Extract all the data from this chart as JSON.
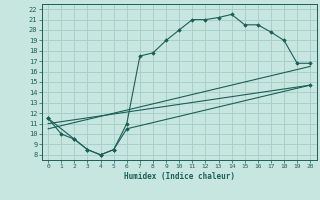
{
  "title": "",
  "xlabel": "Humidex (Indice chaleur)",
  "background_color": "#c8e6e0",
  "grid_color": "#a8cfc8",
  "line_color": "#1a6058",
  "xlim": [
    -0.5,
    20.5
  ],
  "ylim": [
    7.5,
    22.5
  ],
  "xticks": [
    0,
    1,
    2,
    3,
    4,
    5,
    6,
    7,
    8,
    9,
    10,
    11,
    12,
    13,
    14,
    15,
    16,
    17,
    18,
    19,
    20
  ],
  "yticks": [
    8,
    9,
    10,
    11,
    12,
    13,
    14,
    15,
    16,
    17,
    18,
    19,
    20,
    21,
    22
  ],
  "series": [
    {
      "x": [
        0,
        1,
        2,
        3,
        4,
        5,
        6,
        7,
        8,
        9,
        10,
        11,
        12,
        13,
        14,
        15,
        16,
        17,
        18,
        19,
        20
      ],
      "y": [
        11.5,
        10.0,
        9.5,
        8.5,
        8.0,
        8.5,
        11.0,
        17.5,
        17.8,
        19.0,
        20.0,
        21.0,
        21.0,
        21.2,
        21.5,
        20.5,
        20.5,
        19.8,
        19.0,
        16.8,
        16.8
      ],
      "marker": true
    },
    {
      "x": [
        0,
        2,
        3,
        4,
        5,
        6,
        20
      ],
      "y": [
        11.5,
        9.5,
        8.5,
        8.0,
        8.5,
        10.5,
        14.7
      ],
      "marker": true
    },
    {
      "x": [
        0,
        20
      ],
      "y": [
        11.0,
        14.7
      ],
      "marker": false
    },
    {
      "x": [
        0,
        20
      ],
      "y": [
        10.5,
        16.5
      ],
      "marker": false
    }
  ]
}
